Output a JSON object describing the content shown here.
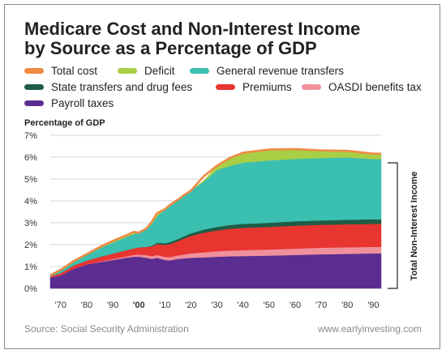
{
  "title_line1": "Medicare Cost and Non-Interest Income",
  "title_line2": "by Source as a Percentage of GDP",
  "legend": [
    {
      "label": "Total cost",
      "color": "#f08a44"
    },
    {
      "label": "Deficit",
      "color": "#a8cf45"
    },
    {
      "label": "General revenue transfers",
      "color": "#3bbfb0"
    },
    {
      "label": "State transfers and drug fees",
      "color": "#1f5c45"
    },
    {
      "label": "Premiums",
      "color": "#e83530"
    },
    {
      "label": "OASDI benefits tax",
      "color": "#f0909c"
    },
    {
      "label": "Payroll taxes",
      "color": "#5c2d91"
    }
  ],
  "ylabel": "Percentage of GDP",
  "bracket_label": "Total Non-Interest Income",
  "source": "Source: Social Security Administration",
  "site": "www.earlyinvesting.com",
  "chart_data": {
    "type": "area",
    "title": "Medicare Cost and Non-Interest Income by Source as a Percentage of GDP",
    "ylabel": "Percentage of GDP",
    "ylim": [
      0,
      7
    ],
    "yticks": [
      "0%",
      "1%",
      "2%",
      "3%",
      "4%",
      "5%",
      "6%",
      "7%"
    ],
    "xlim": [
      1966,
      2093
    ],
    "xticks": [
      {
        "year": 1970,
        "label": "'70",
        "bold": false
      },
      {
        "year": 1980,
        "label": "'80",
        "bold": false
      },
      {
        "year": 1990,
        "label": "'90",
        "bold": false
      },
      {
        "year": 2000,
        "label": "'00",
        "bold": true
      },
      {
        "year": 2010,
        "label": "'10",
        "bold": false
      },
      {
        "year": 2020,
        "label": "'20",
        "bold": false
      },
      {
        "year": 2030,
        "label": "'30",
        "bold": false
      },
      {
        "year": 2040,
        "label": "'40",
        "bold": false
      },
      {
        "year": 2050,
        "label": "'50",
        "bold": false
      },
      {
        "year": 2060,
        "label": "'60",
        "bold": false
      },
      {
        "year": 2070,
        "label": "'70",
        "bold": false
      },
      {
        "year": 2080,
        "label": "'80",
        "bold": false
      },
      {
        "year": 2090,
        "label": "'90",
        "bold": false
      }
    ],
    "grid": true,
    "x": [
      1966,
      1970,
      1975,
      1980,
      1985,
      1990,
      1995,
      1998,
      2000,
      2003,
      2005,
      2007,
      2010,
      2012,
      2015,
      2018,
      2020,
      2025,
      2030,
      2035,
      2040,
      2050,
      2060,
      2070,
      2080,
      2090,
      2093
    ],
    "series": [
      {
        "name": "Payroll taxes",
        "color": "#5c2d91",
        "values": [
          0.5,
          0.6,
          0.9,
          1.1,
          1.2,
          1.3,
          1.4,
          1.45,
          1.45,
          1.4,
          1.35,
          1.4,
          1.3,
          1.28,
          1.35,
          1.38,
          1.4,
          1.42,
          1.45,
          1.47,
          1.48,
          1.5,
          1.53,
          1.56,
          1.58,
          1.6,
          1.6
        ]
      },
      {
        "name": "OASDI benefits tax",
        "color": "#f0909c",
        "values": [
          0.0,
          0.0,
          0.0,
          0.0,
          0.02,
          0.04,
          0.06,
          0.08,
          0.1,
          0.12,
          0.12,
          0.13,
          0.14,
          0.15,
          0.16,
          0.18,
          0.2,
          0.23,
          0.25,
          0.26,
          0.27,
          0.28,
          0.29,
          0.3,
          0.3,
          0.3,
          0.3
        ]
      },
      {
        "name": "Premiums",
        "color": "#e83530",
        "values": [
          0.05,
          0.1,
          0.15,
          0.17,
          0.22,
          0.25,
          0.28,
          0.3,
          0.33,
          0.38,
          0.45,
          0.5,
          0.55,
          0.6,
          0.65,
          0.75,
          0.8,
          0.9,
          0.95,
          1.0,
          1.02,
          1.03,
          1.05,
          1.05,
          1.05,
          1.05,
          1.05
        ]
      },
      {
        "name": "State transfers and drug fees",
        "color": "#1f5c45",
        "values": [
          0.0,
          0.0,
          0.0,
          0.0,
          0.0,
          0.0,
          0.0,
          0.0,
          0.0,
          0.0,
          0.03,
          0.06,
          0.08,
          0.09,
          0.1,
          0.11,
          0.12,
          0.14,
          0.16,
          0.17,
          0.18,
          0.19,
          0.2,
          0.2,
          0.21,
          0.21,
          0.21
        ]
      },
      {
        "name": "General revenue transfers",
        "color": "#3bbfb0",
        "values": [
          0.05,
          0.1,
          0.15,
          0.25,
          0.4,
          0.5,
          0.6,
          0.65,
          0.67,
          0.8,
          1.0,
          1.2,
          1.55,
          1.7,
          1.8,
          1.9,
          1.95,
          2.2,
          2.6,
          2.7,
          2.8,
          2.85,
          2.85,
          2.85,
          2.85,
          2.75,
          2.75
        ]
      },
      {
        "name": "Deficit",
        "color": "#a8cf45",
        "values": [
          0.0,
          0.05,
          0.05,
          0.05,
          0.05,
          0.08,
          0.08,
          0.1,
          0.0,
          0.05,
          0.1,
          0.15,
          0.0,
          0.0,
          0.0,
          0.0,
          0.0,
          0.05,
          0.2,
          0.35,
          0.45,
          0.5,
          0.45,
          0.35,
          0.3,
          0.25,
          0.25
        ]
      },
      {
        "name": "Total cost",
        "color": "#f08a44",
        "line": true,
        "values": [
          0.6,
          0.85,
          1.25,
          1.57,
          1.89,
          2.17,
          2.42,
          2.58,
          2.55,
          2.75,
          3.05,
          3.44,
          3.62,
          3.82,
          4.06,
          4.32,
          4.47,
          5.14,
          5.61,
          5.97,
          6.2,
          6.35,
          6.37,
          6.31,
          6.29,
          6.16,
          6.16
        ]
      }
    ],
    "annotations": [
      "Total Non-Interest Income"
    ]
  }
}
